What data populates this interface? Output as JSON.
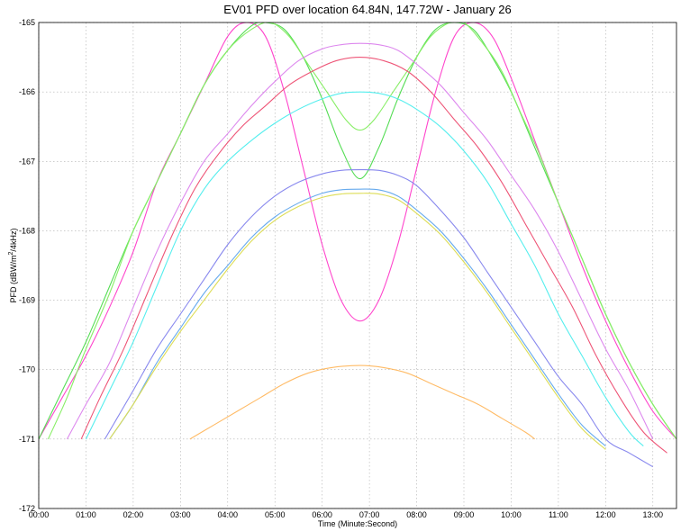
{
  "chart_data": {
    "type": "line",
    "title": "EV01 PFD over location 64.84N, 147.72W - January 26",
    "xlabel": "Time (Minute:Second)",
    "ylabel_parts": [
      "PFD (dBW/m",
      "2",
      "/4kHz)"
    ],
    "xlim": [
      0,
      13.5
    ],
    "ylim": [
      -172,
      -165
    ],
    "x_ticks": [
      {
        "value": 0,
        "label": "00:00"
      },
      {
        "value": 1,
        "label": "01:00"
      },
      {
        "value": 2,
        "label": "02:00"
      },
      {
        "value": 3,
        "label": "03:00"
      },
      {
        "value": 4,
        "label": "04:00"
      },
      {
        "value": 5,
        "label": "05:00"
      },
      {
        "value": 6,
        "label": "06:00"
      },
      {
        "value": 7,
        "label": "07:00"
      },
      {
        "value": 8,
        "label": "08:00"
      },
      {
        "value": 9,
        "label": "09:00"
      },
      {
        "value": 10,
        "label": "10:00"
      },
      {
        "value": 11,
        "label": "11:00"
      },
      {
        "value": 12,
        "label": "12:00"
      },
      {
        "value": 13,
        "label": "13:00"
      }
    ],
    "y_ticks": [
      {
        "value": -165,
        "label": "-165"
      },
      {
        "value": -166,
        "label": "-166"
      },
      {
        "value": -167,
        "label": "-167"
      },
      {
        "value": -168,
        "label": "-168"
      },
      {
        "value": -169,
        "label": "-169"
      },
      {
        "value": -170,
        "label": "-170"
      },
      {
        "value": -171,
        "label": "-171"
      },
      {
        "value": -172,
        "label": "-172"
      }
    ],
    "grid": true,
    "series": [
      {
        "color": "#ff44cc",
        "x": [
          0,
          0.5,
          1,
          1.5,
          2,
          2.5,
          3,
          3.5,
          4,
          4.4,
          4.8,
          5.2,
          5.6,
          6.0,
          6.4,
          6.8,
          7.2,
          7.6,
          8.0,
          8.4,
          8.8,
          9.2,
          9.6,
          10,
          10.5,
          11,
          11.5,
          12,
          12.5,
          13,
          13.5
        ],
        "y": [
          -171.0,
          -170.4,
          -169.8,
          -169.1,
          -168.3,
          -167.3,
          -166.6,
          -165.9,
          -165.2,
          -165.0,
          -165.2,
          -166.0,
          -167.1,
          -168.2,
          -169.0,
          -169.3,
          -169.0,
          -168.2,
          -167.1,
          -166.0,
          -165.2,
          -165.0,
          -165.2,
          -165.8,
          -166.7,
          -167.6,
          -168.5,
          -169.3,
          -170.0,
          -170.6,
          -171.0
        ]
      },
      {
        "color": "#55dd55",
        "x": [
          0,
          0.5,
          1,
          1.5,
          2,
          2.5,
          3,
          3.5,
          4,
          4.5,
          4.8,
          5.2,
          5.6,
          6.0,
          6.4,
          6.8,
          7.2,
          7.6,
          8.0,
          8.4,
          8.8,
          9.2,
          9.6,
          10,
          10.5,
          11,
          11.5,
          12,
          12.5,
          13,
          13.5
        ],
        "y": [
          -171.0,
          -170.3,
          -169.6,
          -168.8,
          -168.0,
          -167.3,
          -166.6,
          -165.9,
          -165.4,
          -165.05,
          -165.0,
          -165.1,
          -165.5,
          -166.1,
          -166.8,
          -167.25,
          -166.8,
          -166.1,
          -165.5,
          -165.1,
          -165.0,
          -165.1,
          -165.5,
          -166.0,
          -166.8,
          -167.6,
          -168.4,
          -169.2,
          -169.9,
          -170.5,
          -171.0
        ]
      },
      {
        "color": "#88ee66",
        "x": [
          0.2,
          0.6,
          1,
          1.5,
          2,
          2.5,
          3,
          3.5,
          4,
          4.5,
          4.9,
          5.3,
          5.7,
          6.1,
          6.5,
          6.8,
          7.1,
          7.5,
          7.9,
          8.3,
          8.7,
          9.0,
          9.4,
          9.8,
          10.2,
          10.6,
          11,
          11.5,
          12,
          12.5,
          13,
          13.5
        ],
        "y": [
          -171.0,
          -170.4,
          -169.7,
          -168.9,
          -168.0,
          -167.3,
          -166.6,
          -165.9,
          -165.4,
          -165.1,
          -165.0,
          -165.2,
          -165.6,
          -166.0,
          -166.4,
          -166.55,
          -166.4,
          -166.0,
          -165.6,
          -165.2,
          -165.0,
          -165.0,
          -165.3,
          -165.7,
          -166.3,
          -166.9,
          -167.6,
          -168.4,
          -169.2,
          -169.9,
          -170.5,
          -171.0
        ]
      },
      {
        "color": "#dd88ee",
        "x": [
          0.6,
          1,
          1.5,
          2,
          2.5,
          3,
          3.5,
          4,
          4.5,
          5,
          5.5,
          6,
          6.4,
          6.8,
          7.2,
          7.6,
          8,
          8.5,
          9,
          9.5,
          10,
          10.5,
          11,
          11.5,
          12,
          12.5,
          13
        ],
        "y": [
          -171.0,
          -170.5,
          -169.9,
          -169.1,
          -168.3,
          -167.6,
          -167.0,
          -166.6,
          -166.2,
          -165.85,
          -165.55,
          -165.38,
          -165.32,
          -165.3,
          -165.32,
          -165.4,
          -165.6,
          -165.9,
          -166.3,
          -166.7,
          -167.2,
          -167.7,
          -168.3,
          -169.0,
          -169.7,
          -170.3,
          -171.0
        ]
      },
      {
        "color": "#ee5577",
        "x": [
          0.9,
          1.3,
          1.8,
          2.3,
          2.8,
          3.3,
          3.8,
          4.3,
          4.8,
          5.3,
          5.8,
          6.3,
          6.8,
          7.3,
          7.8,
          8.3,
          8.8,
          9.3,
          9.8,
          10.3,
          10.8,
          11.3,
          11.8,
          12.3,
          12.8,
          13.3
        ],
        "y": [
          -171.0,
          -170.4,
          -169.7,
          -168.9,
          -168.1,
          -167.4,
          -166.9,
          -166.5,
          -166.2,
          -165.9,
          -165.7,
          -165.55,
          -165.5,
          -165.55,
          -165.7,
          -166.0,
          -166.4,
          -166.8,
          -167.3,
          -167.9,
          -168.5,
          -169.1,
          -169.8,
          -170.4,
          -170.9,
          -171.2
        ]
      },
      {
        "color": "#55eeee",
        "x": [
          1.0,
          1.5,
          2,
          2.5,
          3,
          3.5,
          4,
          4.5,
          5,
          5.5,
          6,
          6.4,
          6.8,
          7.2,
          7.6,
          8,
          8.5,
          9,
          9.5,
          10,
          10.5,
          11,
          11.5,
          12,
          12.5,
          12.8
        ],
        "y": [
          -171.0,
          -170.3,
          -169.6,
          -168.8,
          -168.0,
          -167.4,
          -167.0,
          -166.7,
          -166.45,
          -166.25,
          -166.1,
          -166.02,
          -166.0,
          -166.02,
          -166.1,
          -166.25,
          -166.5,
          -166.85,
          -167.3,
          -167.9,
          -168.5,
          -169.2,
          -169.8,
          -170.4,
          -170.9,
          -171.1
        ]
      },
      {
        "color": "#8888ee",
        "x": [
          1.4,
          2,
          2.5,
          3,
          3.5,
          4,
          4.5,
          5,
          5.5,
          6,
          6.4,
          6.8,
          7.2,
          7.6,
          8,
          8.5,
          9,
          9.5,
          10,
          10.5,
          11,
          11.5,
          12,
          12.5,
          13
        ],
        "y": [
          -171.0,
          -170.3,
          -169.7,
          -169.2,
          -168.7,
          -168.2,
          -167.8,
          -167.5,
          -167.3,
          -167.18,
          -167.13,
          -167.12,
          -167.13,
          -167.2,
          -167.35,
          -167.7,
          -168.1,
          -168.6,
          -169.1,
          -169.6,
          -170.1,
          -170.5,
          -171.0,
          -171.2,
          -171.4
        ]
      },
      {
        "color": "#66aaee",
        "x": [
          1.5,
          2,
          2.5,
          3,
          3.5,
          4,
          4.5,
          5,
          5.5,
          6,
          6.4,
          6.8,
          7.2,
          7.6,
          8,
          8.5,
          9,
          9.5,
          10,
          10.5,
          11,
          11.5,
          12
        ],
        "y": [
          -171.0,
          -170.5,
          -169.9,
          -169.4,
          -168.9,
          -168.5,
          -168.1,
          -167.8,
          -167.6,
          -167.46,
          -167.41,
          -167.4,
          -167.41,
          -167.5,
          -167.7,
          -168.0,
          -168.4,
          -168.85,
          -169.35,
          -169.85,
          -170.35,
          -170.8,
          -171.1
        ]
      },
      {
        "color": "#dddd55",
        "x": [
          1.5,
          2,
          2.5,
          3,
          3.5,
          4,
          4.5,
          5,
          5.5,
          6,
          6.4,
          6.8,
          7.2,
          7.6,
          8,
          8.5,
          9,
          9.5,
          10,
          10.5,
          11,
          11.5,
          12
        ],
        "y": [
          -171.0,
          -170.5,
          -169.95,
          -169.45,
          -169.0,
          -168.55,
          -168.15,
          -167.85,
          -167.65,
          -167.52,
          -167.47,
          -167.46,
          -167.47,
          -167.55,
          -167.75,
          -168.05,
          -168.45,
          -168.9,
          -169.4,
          -169.9,
          -170.4,
          -170.85,
          -171.15
        ]
      },
      {
        "color": "#ffbb66",
        "x": [
          3.2,
          3.7,
          4.2,
          4.7,
          5.2,
          5.7,
          6.2,
          6.8,
          7.3,
          7.8,
          8.3,
          8.8,
          9.3,
          9.8,
          10.3,
          10.5
        ],
        "y": [
          -171.0,
          -170.8,
          -170.6,
          -170.4,
          -170.2,
          -170.05,
          -169.97,
          -169.94,
          -169.97,
          -170.05,
          -170.2,
          -170.35,
          -170.5,
          -170.7,
          -170.9,
          -171.0
        ]
      }
    ]
  }
}
